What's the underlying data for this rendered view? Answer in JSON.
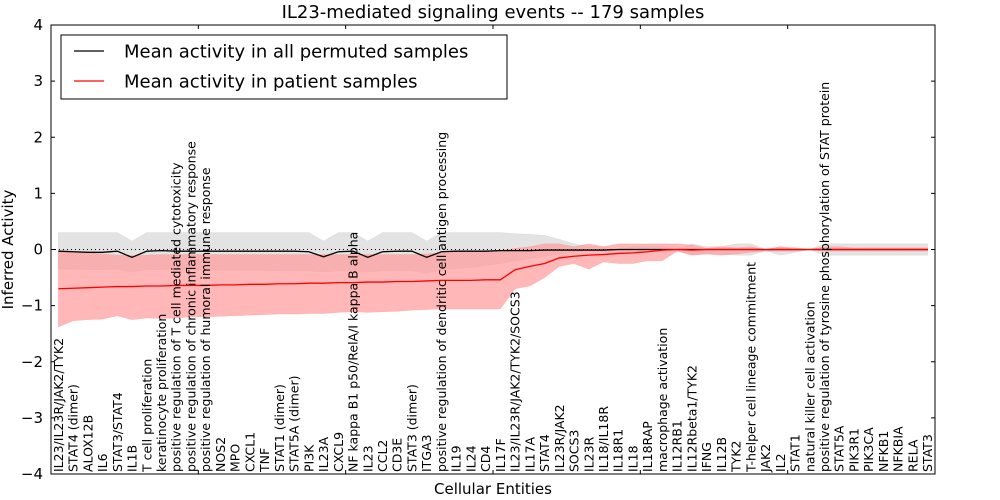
{
  "chart_data": {
    "type": "line",
    "title": "IL23-mediated signaling events -- 179 samples",
    "xlabel": "Cellular Entities",
    "ylabel": "Inferred Activity",
    "ylim": [
      -4,
      4
    ],
    "xlim": [
      0,
      60
    ],
    "yticks": [
      "4",
      "3",
      "2",
      "1",
      "0",
      "−1",
      "−2",
      "−3",
      "−4"
    ],
    "ytick_values": [
      4,
      3,
      2,
      1,
      0,
      -1,
      -2,
      -3,
      -4
    ],
    "xtick_values": [
      0,
      10,
      20,
      30,
      40,
      50,
      60
    ],
    "grid": false,
    "legend_position": "top-left",
    "reference_line": {
      "y": 0,
      "style": "dotted",
      "color": "#000000"
    },
    "categories": [
      "IL23/IL23R/JAK2/TYK2",
      "STAT4 (dimer)",
      "ALOX12B",
      "IL6",
      "STAT3/STAT4",
      "IL1B",
      "T cell proliferation",
      "keratinocyte proliferation",
      "positive regulation of T cell mediated cytotoxicity",
      "positive regulation of chronic inflammatory response",
      "positive regulation of humoral immune response",
      "NOS2",
      "MPO",
      "CXCL1",
      "TNF",
      "STAT1 (dimer)",
      "STAT5A (dimer)",
      "PI3K",
      "IL23A",
      "CXCL9",
      "NF kappa B1 p50/RelA/I kappa B alpha",
      "IL23",
      "CCL2",
      "CD3E",
      "STAT3 (dimer)",
      "ITGA3",
      "positive regulation of dendritic cell antigen processing",
      "IL19",
      "IL24",
      "CD4",
      "IL17F",
      "IL23/IL23R/JAK2/TYK2/SOCS3",
      "IL17A",
      "STAT4",
      "IL23R/JAK2",
      "SOCS3",
      "IL23R",
      "IL18/IL18R",
      "IL18R1",
      "IL18",
      "IL18RAP",
      "macrophage activation",
      "IL12RB1",
      "IL12Rbeta1/TYK2",
      "IFNG",
      "IL12B",
      "TYK2",
      "T-helper cell lineage commitment",
      "JAK2",
      "IL2",
      "STAT1",
      "natural killer cell activation",
      "positive regulation of tyrosine phosphorylation of STAT protein",
      "STAT5A",
      "PIK3R1",
      "PIK3CA",
      "NFKB1",
      "NFKBIA",
      "RELA",
      "STAT3"
    ],
    "series": [
      {
        "name": "Mean activity in all permuted samples",
        "color": "#000000",
        "band_color": "#c8c8c8",
        "values": [
          -0.03,
          -0.04,
          -0.05,
          -0.05,
          -0.03,
          -0.14,
          -0.03,
          -0.02,
          -0.03,
          -0.03,
          -0.03,
          -0.03,
          -0.03,
          -0.03,
          -0.03,
          -0.03,
          -0.03,
          -0.04,
          -0.13,
          -0.04,
          -0.03,
          -0.14,
          -0.04,
          -0.03,
          -0.03,
          -0.14,
          -0.04,
          -0.03,
          -0.03,
          -0.03,
          -0.02,
          -0.02,
          -0.02,
          -0.01,
          -0.01,
          -0.01,
          -0.01,
          -0.01,
          0.0,
          0.0,
          0.0,
          0.0,
          0.0,
          0.0,
          0.0,
          0.0,
          0.0,
          0.0,
          0.0,
          0.0,
          0.0,
          0.0,
          0.0,
          0.0,
          0.0,
          0.0,
          0.0,
          0.0,
          0.0,
          0.0
        ],
        "upper": [
          0.3,
          0.3,
          0.3,
          0.3,
          0.3,
          0.15,
          0.3,
          0.3,
          0.3,
          0.3,
          0.3,
          0.3,
          0.3,
          0.3,
          0.3,
          0.3,
          0.3,
          0.3,
          0.15,
          0.3,
          0.3,
          0.15,
          0.3,
          0.3,
          0.3,
          0.15,
          0.3,
          0.3,
          0.3,
          0.3,
          0.3,
          0.28,
          0.27,
          0.25,
          0.18,
          0.1,
          0.05,
          0.05,
          0.0,
          0.05,
          0.05,
          0.05,
          0.0,
          0.1,
          0.05,
          0.05,
          0.1,
          0.1,
          0.0,
          0.05,
          0.0,
          0.0,
          0.1,
          0.1,
          0.1,
          0.1,
          0.1,
          0.1,
          0.1,
          0.1
        ],
        "lower": [
          -0.35,
          -0.35,
          -0.36,
          -0.36,
          -0.35,
          -0.4,
          -0.36,
          -0.36,
          -0.37,
          -0.37,
          -0.37,
          -0.37,
          -0.37,
          -0.37,
          -0.37,
          -0.38,
          -0.38,
          -0.38,
          -0.4,
          -0.38,
          -0.38,
          -0.4,
          -0.38,
          -0.38,
          -0.38,
          -0.42,
          -0.36,
          -0.34,
          -0.32,
          -0.28,
          -0.25,
          -0.2,
          -0.16,
          -0.12,
          -0.08,
          -0.05,
          -0.02,
          -0.03,
          -0.02,
          -0.03,
          -0.03,
          -0.03,
          -0.02,
          -0.1,
          -0.08,
          -0.08,
          -0.1,
          -0.1,
          -0.02,
          -0.1,
          -0.05,
          0.0,
          -0.1,
          -0.1,
          -0.1,
          -0.1,
          -0.1,
          -0.1,
          -0.1,
          -0.1
        ]
      },
      {
        "name": "Mean activity in patient samples",
        "color": "#ff0000",
        "band_color": "#ff9999",
        "values": [
          -0.7,
          -0.69,
          -0.68,
          -0.67,
          -0.66,
          -0.66,
          -0.65,
          -0.65,
          -0.64,
          -0.64,
          -0.64,
          -0.63,
          -0.63,
          -0.62,
          -0.62,
          -0.61,
          -0.61,
          -0.6,
          -0.6,
          -0.59,
          -0.59,
          -0.58,
          -0.58,
          -0.57,
          -0.57,
          -0.56,
          -0.55,
          -0.55,
          -0.55,
          -0.54,
          -0.54,
          -0.36,
          -0.3,
          -0.25,
          -0.15,
          -0.12,
          -0.1,
          -0.09,
          -0.07,
          -0.06,
          -0.04,
          -0.01,
          0.0,
          -0.01,
          0.0,
          0.0,
          0.0,
          0.0,
          0.0,
          0.0,
          0.0,
          0.0,
          0.0,
          0.0,
          0.0,
          0.0,
          0.0,
          0.0,
          0.0,
          0.0
        ],
        "upper": [
          -0.02,
          -0.03,
          -0.05,
          -0.08,
          -0.1,
          -0.11,
          -0.1,
          -0.09,
          -0.09,
          -0.09,
          -0.09,
          -0.09,
          -0.09,
          -0.09,
          -0.09,
          -0.09,
          -0.09,
          -0.09,
          -0.09,
          -0.09,
          -0.09,
          -0.09,
          -0.09,
          -0.09,
          -0.09,
          -0.08,
          -0.06,
          -0.04,
          -0.03,
          -0.02,
          -0.02,
          0.02,
          0.05,
          0.1,
          0.1,
          0.05,
          0.1,
          0.05,
          0.1,
          0.1,
          0.1,
          0.1,
          0.1,
          0.08,
          0.02,
          0.05,
          0.03,
          0.05,
          0.0,
          0.05,
          0.03,
          0.0,
          0.05,
          0.05,
          0.03,
          0.03,
          0.03,
          0.03,
          0.03,
          0.03
        ],
        "lower": [
          -1.38,
          -1.27,
          -1.25,
          -1.24,
          -1.18,
          -1.25,
          -1.22,
          -1.23,
          -1.22,
          -1.2,
          -1.2,
          -1.19,
          -1.18,
          -1.17,
          -1.16,
          -1.15,
          -1.15,
          -1.14,
          -1.14,
          -1.12,
          -1.11,
          -1.12,
          -1.11,
          -1.1,
          -1.08,
          -1.07,
          -1.06,
          -1.06,
          -1.06,
          -1.06,
          -1.06,
          -0.7,
          -0.65,
          -0.5,
          -0.3,
          -0.25,
          -0.35,
          -0.22,
          -0.25,
          -0.25,
          -0.2,
          -0.2,
          -0.03,
          -0.1,
          -0.08,
          -0.1,
          -0.08,
          -0.05,
          -0.03,
          -0.03,
          -0.03,
          -0.01,
          -0.03,
          -0.03,
          -0.03,
          -0.03,
          -0.03,
          -0.03,
          -0.03,
          -0.03
        ]
      }
    ]
  }
}
